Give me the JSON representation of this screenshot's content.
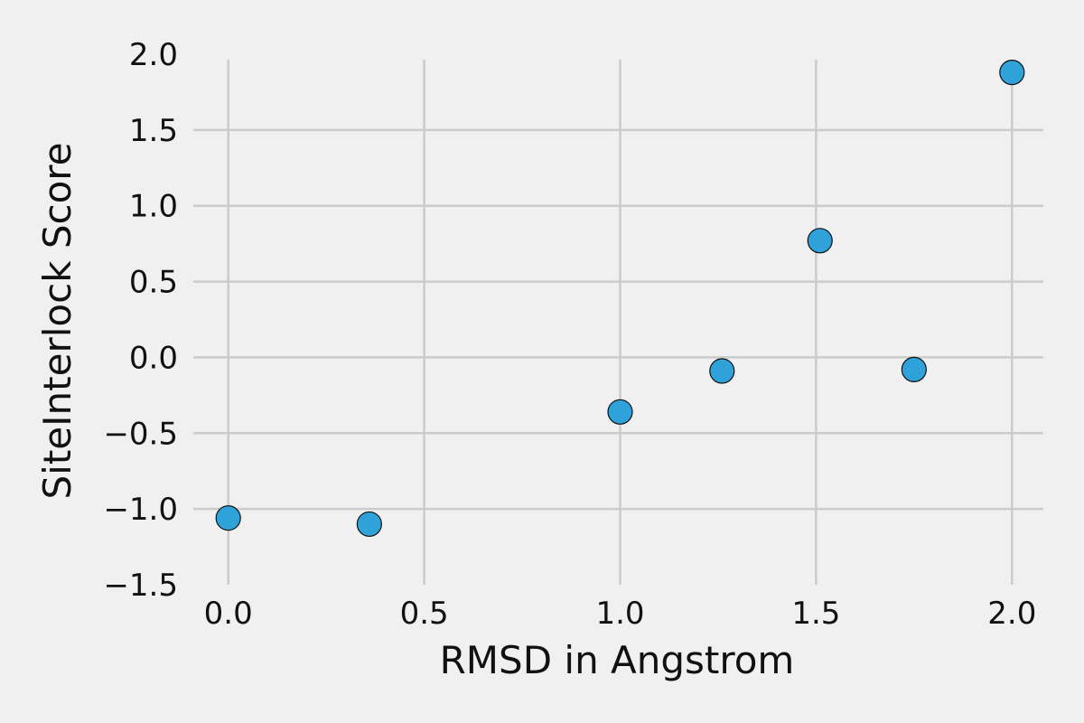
{
  "chart_data": {
    "type": "scatter",
    "title": "",
    "xlabel": "RMSD in Angstrom",
    "ylabel": "SiteInterlock Score",
    "xlim": [
      -0.08,
      2.08
    ],
    "ylim": [
      -1.5,
      2.0
    ],
    "xticks": [
      0.0,
      0.5,
      1.0,
      1.5,
      2.0
    ],
    "xtick_labels": [
      "0.0",
      "0.5",
      "1.0",
      "1.5",
      "2.0"
    ],
    "yticks": [
      -1.5,
      -1.0,
      -0.5,
      0.0,
      0.5,
      1.0,
      1.5,
      2.0
    ],
    "ytick_labels": [
      "−1.5",
      "−1.0",
      "−0.5",
      "0.0",
      "0.5",
      "1.0",
      "1.5",
      "2.0"
    ],
    "grid": true,
    "marker_color": "#30a2da",
    "background": "#f0f0f0",
    "series": [
      {
        "x": [
          0.0,
          0.36,
          1.0,
          1.26,
          1.51,
          1.75,
          2.0
        ],
        "y": [
          -1.06,
          -1.1,
          -0.36,
          -0.09,
          0.77,
          -0.08,
          1.88
        ]
      }
    ]
  }
}
